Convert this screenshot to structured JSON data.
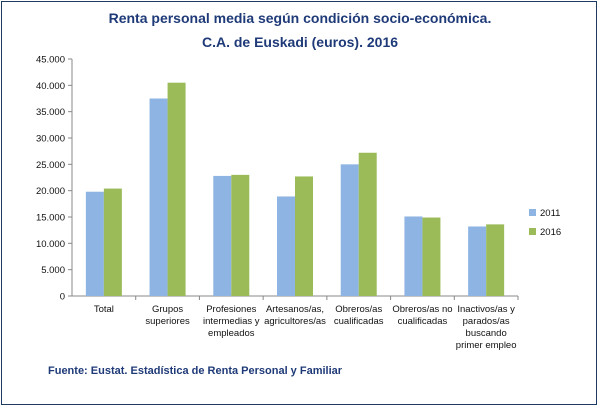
{
  "chart_data": {
    "type": "bar",
    "title": "Renta personal media según condición socio-económica.",
    "subtitle": "C.A. de Euskadi (euros). 2016",
    "categories": [
      [
        "Total"
      ],
      [
        "Grupos",
        "superiores"
      ],
      [
        "Profesiones",
        "intermedias y",
        "empleados"
      ],
      [
        "Artesanos/as,",
        "agricultores/as"
      ],
      [
        "Obreros/as",
        "cualificadas"
      ],
      [
        "Obreros/as no",
        "cualificadas"
      ],
      [
        "Inactivos/as y",
        "parados/as",
        "buscando",
        "primer empleo"
      ]
    ],
    "series": [
      {
        "name": "2011",
        "color": "#8db4e2",
        "values": [
          19800,
          37500,
          22800,
          18900,
          25000,
          15100,
          13200
        ]
      },
      {
        "name": "2016",
        "color": "#9bbb59",
        "values": [
          20400,
          40500,
          23000,
          22700,
          27200,
          14900,
          13600
        ]
      }
    ],
    "ylim": [
      0,
      45000
    ],
    "yticks": [
      "0",
      "5.000",
      "10.000",
      "15.000",
      "20.000",
      "25.000",
      "30.000",
      "35.000",
      "40.000",
      "45.000"
    ],
    "ytick_step": 5000,
    "grid": false,
    "legend_position": "right"
  },
  "source_text": "Fuente: Eustat. Estadística de Renta Personal y Familiar"
}
